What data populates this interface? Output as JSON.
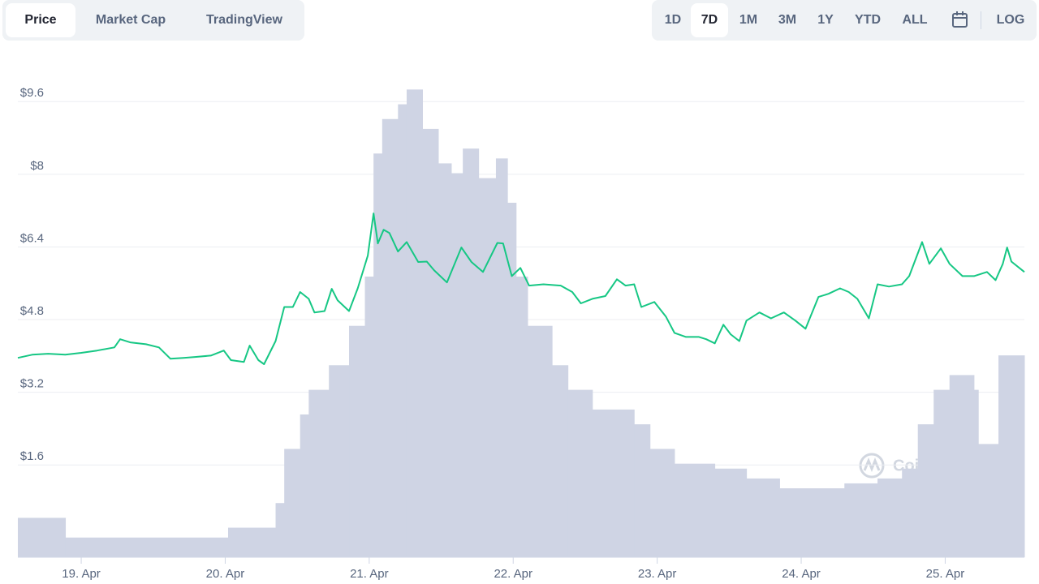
{
  "ui": {
    "tabs": [
      "Price",
      "Market Cap",
      "TradingView"
    ],
    "ranges": [
      "1D",
      "7D",
      "1M",
      "3M",
      "1Y",
      "YTD",
      "ALL"
    ],
    "log": "LOG",
    "watermark": "CoinMarketCap"
  },
  "chart_data": {
    "type": "line",
    "grid": true,
    "xlim": [
      18.56,
      25.55
    ],
    "xticks": [
      {
        "value": 19,
        "label": "19. Apr"
      },
      {
        "value": 20,
        "label": "20. Apr"
      },
      {
        "value": 21,
        "label": "21. Apr"
      },
      {
        "value": 22,
        "label": "22. Apr"
      },
      {
        "value": 23,
        "label": "23. Apr"
      },
      {
        "value": 24,
        "label": "24. Apr"
      },
      {
        "value": 25,
        "label": "25. Apr"
      }
    ],
    "ylim": [
      -0.61,
      10.23
    ],
    "yticks": [
      {
        "value": 1.6,
        "label": "$1.6"
      },
      {
        "value": 3.2,
        "label": "$3.2"
      },
      {
        "value": 4.8,
        "label": "$4.8"
      },
      {
        "value": 6.4,
        "label": "$6.4"
      },
      {
        "value": 8,
        "label": "$8"
      },
      {
        "value": 9.6,
        "label": "$9.6"
      }
    ],
    "y2lim": [
      0,
      100
    ],
    "series": [
      {
        "color": "#16c784",
        "x": [
          18.56,
          18.66,
          18.77,
          18.89,
          19.0,
          19.11,
          19.23,
          19.27,
          19.34,
          19.45,
          19.54,
          19.62,
          19.71,
          19.79,
          19.9,
          19.99,
          20.04,
          20.13,
          20.17,
          20.23,
          20.27,
          20.35,
          20.41,
          20.47,
          20.52,
          20.58,
          20.62,
          20.69,
          20.74,
          20.78,
          20.86,
          20.92,
          20.99,
          21.03,
          21.06,
          21.1,
          21.14,
          21.2,
          21.26,
          21.34,
          21.4,
          21.45,
          21.54,
          21.64,
          21.71,
          21.79,
          21.89,
          21.93,
          21.99,
          22.05,
          22.11,
          22.21,
          22.33,
          22.41,
          22.47,
          22.55,
          22.64,
          22.72,
          22.78,
          22.84,
          22.89,
          22.98,
          23.06,
          23.12,
          23.2,
          23.29,
          23.34,
          23.4,
          23.46,
          23.51,
          23.57,
          23.62,
          23.71,
          23.79,
          23.88,
          23.96,
          24.03,
          24.12,
          24.19,
          24.27,
          24.33,
          24.39,
          24.47,
          24.53,
          24.61,
          24.7,
          24.75,
          24.84,
          24.89,
          24.97,
          25.03,
          25.12,
          25.2,
          25.29,
          25.35,
          25.4,
          25.43,
          25.46,
          25.55
        ],
        "values": [
          3.78,
          3.85,
          3.87,
          3.85,
          3.89,
          3.94,
          4.01,
          4.19,
          4.12,
          4.08,
          4.01,
          3.76,
          3.78,
          3.8,
          3.83,
          3.94,
          3.73,
          3.69,
          4.05,
          3.73,
          3.64,
          4.15,
          4.9,
          4.9,
          5.23,
          5.08,
          4.78,
          4.81,
          5.3,
          5.05,
          4.81,
          5.31,
          6.03,
          6.96,
          6.3,
          6.6,
          6.53,
          6.12,
          6.33,
          5.89,
          5.9,
          5.71,
          5.44,
          6.21,
          5.89,
          5.67,
          6.31,
          6.3,
          5.58,
          5.76,
          5.37,
          5.4,
          5.37,
          5.23,
          4.98,
          5.08,
          5.14,
          5.51,
          5.37,
          5.4,
          4.9,
          5.01,
          4.69,
          4.33,
          4.24,
          4.24,
          4.19,
          4.1,
          4.51,
          4.3,
          4.15,
          4.6,
          4.78,
          4.65,
          4.78,
          4.6,
          4.42,
          5.12,
          5.19,
          5.31,
          5.23,
          5.08,
          4.65,
          5.4,
          5.35,
          5.4,
          5.58,
          6.33,
          5.85,
          6.19,
          5.85,
          5.58,
          5.58,
          5.67,
          5.49,
          5.85,
          6.21,
          5.9,
          5.67
        ]
      },
      {
        "type": "bar",
        "axis": "y2",
        "color": "#cfd4e4",
        "x": [
          18.56,
          18.89,
          20.02,
          20.35,
          20.41,
          20.52,
          20.58,
          20.72,
          20.86,
          20.97,
          21.03,
          21.09,
          21.2,
          21.26,
          21.37,
          21.48,
          21.57,
          21.65,
          21.76,
          21.88,
          21.96,
          22.02,
          22.1,
          22.27,
          22.38,
          22.55,
          22.84,
          22.95,
          23.12,
          23.4,
          23.62,
          23.85,
          24.08,
          24.3,
          24.53,
          24.7,
          24.81,
          24.92,
          25.03,
          25.2,
          25.23,
          25.37
        ],
        "values": [
          8,
          4,
          6,
          11,
          22,
          29,
          34,
          39,
          47,
          57,
          82,
          89,
          92,
          95,
          87,
          80,
          78,
          83,
          77,
          81,
          72,
          57,
          47,
          39,
          34,
          30,
          27,
          22,
          19,
          18,
          16,
          14,
          14,
          15,
          16,
          18,
          27,
          34,
          37,
          34,
          23,
          41
        ]
      }
    ]
  }
}
